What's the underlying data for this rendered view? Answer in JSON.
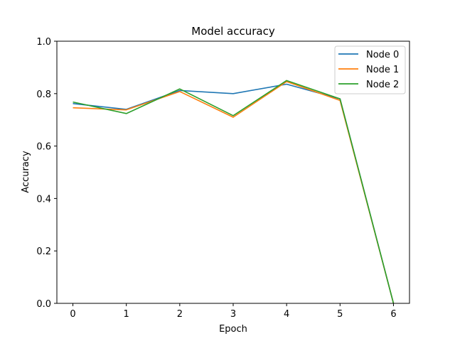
{
  "chart_data": {
    "type": "line",
    "title": "Model accuracy",
    "xlabel": "Epoch",
    "ylabel": "Accuracy",
    "x": [
      0,
      1,
      2,
      3,
      4,
      5,
      6
    ],
    "xlim": [
      -0.3,
      6.3
    ],
    "ylim": [
      0.0,
      1.0
    ],
    "xticks": [
      "0",
      "1",
      "2",
      "3",
      "4",
      "5",
      "6"
    ],
    "yticks": [
      "0.0",
      "0.2",
      "0.4",
      "0.6",
      "0.8",
      "1.0"
    ],
    "ytick_values": [
      0.0,
      0.2,
      0.4,
      0.6,
      0.8,
      1.0
    ],
    "grid": false,
    "legend_position": "top-right",
    "series": [
      {
        "name": "Node 0",
        "color": "#1f77b4",
        "values": [
          0.762,
          0.74,
          0.812,
          0.8,
          0.836,
          0.78,
          0.0
        ]
      },
      {
        "name": "Node 1",
        "color": "#ff7f0e",
        "values": [
          0.746,
          0.738,
          0.808,
          0.71,
          0.846,
          0.774,
          0.0
        ]
      },
      {
        "name": "Node 2",
        "color": "#2ca02c",
        "values": [
          0.768,
          0.724,
          0.818,
          0.716,
          0.85,
          0.78,
          0.0
        ]
      }
    ]
  }
}
